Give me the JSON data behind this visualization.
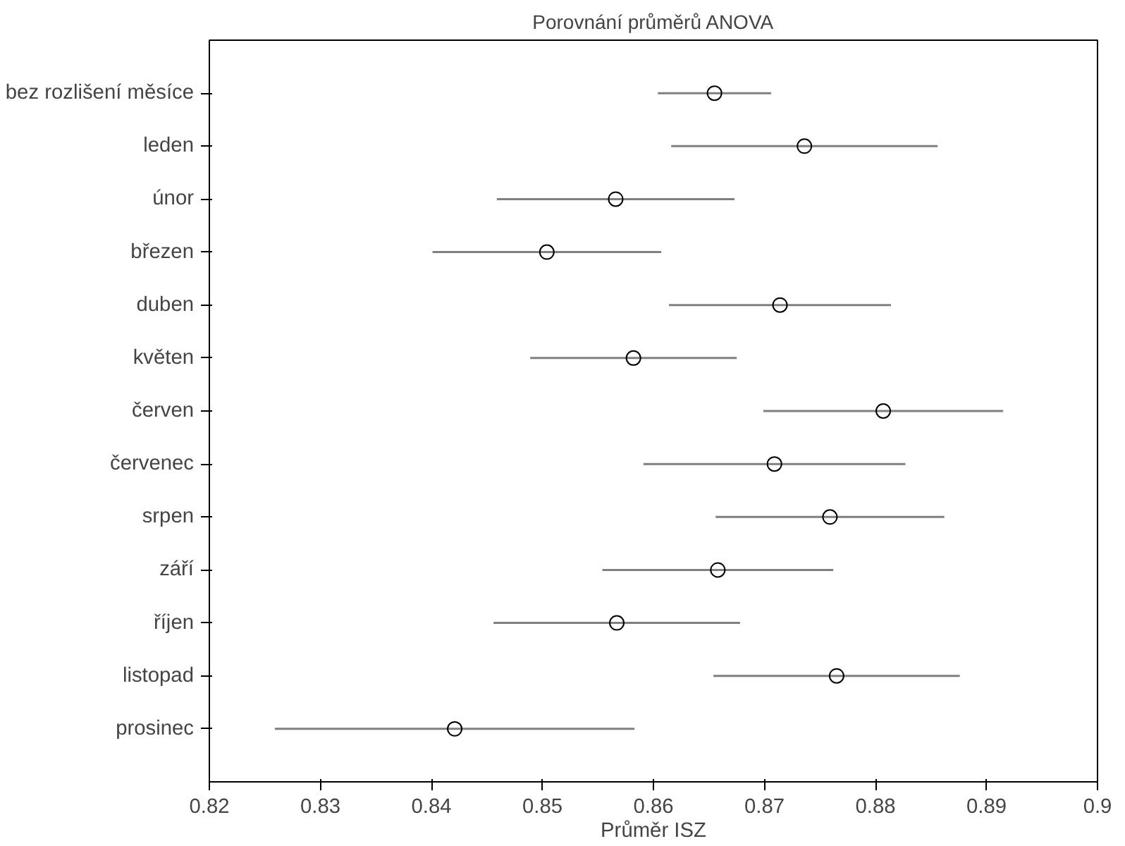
{
  "chart_data": {
    "type": "scatter",
    "orientation": "horizontal",
    "title": "Porovnání průměrů ANOVA",
    "xlabel": "Průměr ISZ",
    "categories": [
      "bez rozlišení měsíce",
      "leden",
      "únor",
      "březen",
      "duben",
      "květen",
      "červen",
      "červenec",
      "srpen",
      "září",
      "říjen",
      "listopad",
      "prosinec"
    ],
    "series": [
      {
        "color": "#000000",
        "values": [
          0.8655,
          0.8736,
          0.8566,
          0.8504,
          0.8714,
          0.8582,
          0.8807,
          0.8709,
          0.8759,
          0.8658,
          0.8567,
          0.8765,
          0.8421
        ],
        "errors": [
          0.0051,
          0.012,
          0.0107,
          0.0103,
          0.01,
          0.0093,
          0.0108,
          0.0118,
          0.0103,
          0.0104,
          0.0111,
          0.0111,
          0.0162
        ]
      }
    ],
    "xlim": [
      0.82,
      0.9
    ],
    "xticks": [
      0.82,
      0.83,
      0.84,
      0.85,
      0.86,
      0.87,
      0.88,
      0.89,
      0.9
    ],
    "grid": false,
    "marker": "circle"
  }
}
